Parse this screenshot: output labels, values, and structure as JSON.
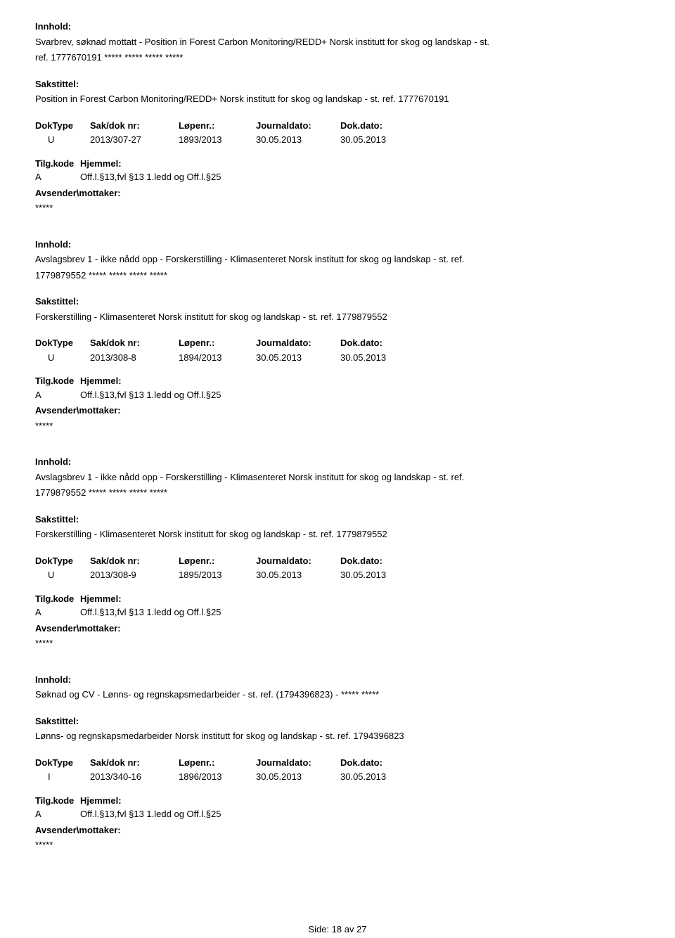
{
  "labels": {
    "innhold": "Innhold:",
    "sakstittel": "Sakstittel:",
    "doktype": "DokType",
    "sakdok": "Sak/dok nr:",
    "lopenr": "Løpenr.:",
    "journaldato": "Journaldato:",
    "dokdato": "Dok.dato:",
    "tilgkode": "Tilg.kode",
    "hjemmel": "Hjemmel:",
    "avsender": "Avsender\\mottaker:",
    "side": "Side:",
    "stars": "*****"
  },
  "footer": {
    "page": "18",
    "sep": " av ",
    "total": "27"
  },
  "entries": [
    {
      "innhold_line1": "Svarbrev, søknad mottatt - Position in Forest Carbon Monitoring/REDD+ Norsk institutt for skog og landskap - st.",
      "innhold_line2": "ref. 1777670191  ***** ***** ***** *****",
      "saks": "Position in Forest Carbon Monitoring/REDD+ Norsk institutt for skog og landskap - st. ref. 1777670191",
      "doktype": "U",
      "sakdok": "2013/307-27",
      "lopenr": "1893/2013",
      "jd": "30.05.2013",
      "dd": "30.05.2013",
      "hjA": "A",
      "hjText": "Off.l.§13,fvl §13 1.ledd og Off.l.§25"
    },
    {
      "innhold_line1": "Avslagsbrev 1 - ikke nådd opp - Forskerstilling - Klimasenteret Norsk institutt for skog og landskap - st. ref.",
      "innhold_line2": "1779879552  ***** ***** ***** *****",
      "saks": "Forskerstilling - Klimasenteret Norsk institutt for skog og landskap - st. ref. 1779879552",
      "doktype": "U",
      "sakdok": "2013/308-8",
      "lopenr": "1894/2013",
      "jd": "30.05.2013",
      "dd": "30.05.2013",
      "hjA": "A",
      "hjText": "Off.l.§13,fvl §13 1.ledd og Off.l.§25"
    },
    {
      "innhold_line1": "Avslagsbrev 1 - ikke nådd opp - Forskerstilling - Klimasenteret Norsk institutt for skog og landskap - st. ref.",
      "innhold_line2": "1779879552  ***** ***** ***** *****",
      "saks": "Forskerstilling - Klimasenteret Norsk institutt for skog og landskap - st. ref. 1779879552",
      "doktype": "U",
      "sakdok": "2013/308-9",
      "lopenr": "1895/2013",
      "jd": "30.05.2013",
      "dd": "30.05.2013",
      "hjA": "A",
      "hjText": "Off.l.§13,fvl §13 1.ledd og Off.l.§25"
    },
    {
      "innhold_line1": "Søknad og CV - Lønns- og regnskapsmedarbeider - st. ref. (1794396823) -  ***** *****",
      "innhold_line2": "",
      "saks": "Lønns- og regnskapsmedarbeider Norsk institutt for skog og landskap - st. ref. 1794396823",
      "doktype": "I",
      "sakdok": "2013/340-16",
      "lopenr": "1896/2013",
      "jd": "30.05.2013",
      "dd": "30.05.2013",
      "hjA": "A",
      "hjText": "Off.l.§13,fvl §13 1.ledd og Off.l.§25"
    }
  ]
}
